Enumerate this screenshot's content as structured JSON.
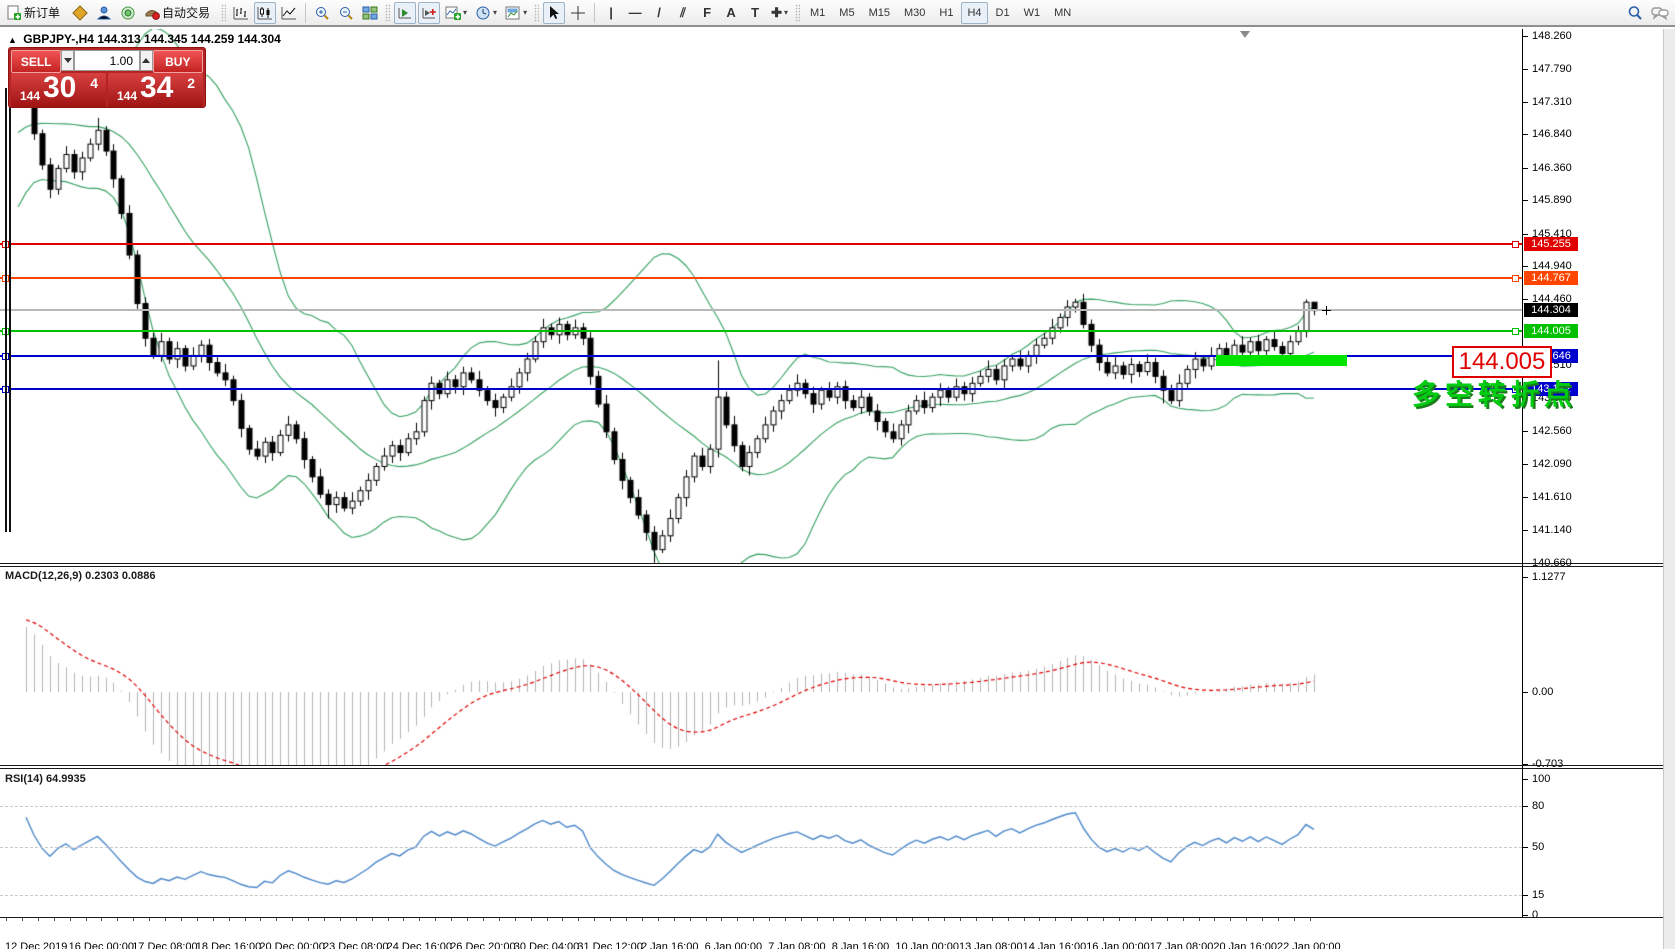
{
  "toolbar": {
    "new_order": {
      "label": "新订单"
    },
    "autotrading": {
      "label": "自动交易"
    },
    "tools": {
      "vline": "|",
      "hline": "—",
      "trend": "/",
      "channel": "⫽",
      "fibo": "F",
      "text": "A",
      "label": "T",
      "arrows": "✚"
    },
    "timeframes": [
      {
        "label": "M1"
      },
      {
        "label": "M5"
      },
      {
        "label": "M15"
      },
      {
        "label": "M30"
      },
      {
        "label": "H1"
      },
      {
        "label": "H4",
        "active": true
      },
      {
        "label": "D1"
      },
      {
        "label": "W1"
      },
      {
        "label": "MN"
      }
    ]
  },
  "quote_header": {
    "symbol": "GBPJPY-,H4",
    "ohlc": "144.313 144.345 144.259 144.304"
  },
  "trade_panel": {
    "sell_label": "SELL",
    "buy_label": "BUY",
    "volume": "1.00",
    "sell_price": {
      "prefix": "144",
      "big": "30",
      "sup": "4"
    },
    "buy_price": {
      "prefix": "144",
      "big": "34",
      "sup": "2"
    }
  },
  "annotations": {
    "level_label": "144.005",
    "note": "多空转折点"
  },
  "indicators": {
    "macd": {
      "label": "MACD(12,26,9)",
      "value_main": "0.2303",
      "value_signal": "0.0886",
      "axis": [
        "1.1277",
        "0.00",
        "-0.703"
      ],
      "fast": 12,
      "slow": 26,
      "signal": 9
    },
    "rsi": {
      "label": "RSI(14)",
      "value": "64.9935",
      "axis": [
        "100",
        "80",
        "50",
        "15",
        "0"
      ],
      "levels": [
        80,
        50,
        15
      ],
      "period": 14
    }
  },
  "price_axis": {
    "ticks": [
      "148.260",
      "147.790",
      "147.310",
      "146.840",
      "146.360",
      "145.890",
      "145.410",
      "144.940",
      "144.460",
      "143.510",
      "143.040",
      "142.560",
      "142.090",
      "141.610",
      "141.140",
      "140.660"
    ]
  },
  "chart_data": {
    "type": "candlestick",
    "symbol": "GBPJPY",
    "timeframe": "H4",
    "ylim": [
      140.55,
      148.36
    ],
    "current_price": {
      "value": 144.304,
      "color": "#b8b8b8",
      "badge": "#000000"
    },
    "levels": [
      {
        "price": 145.255,
        "label": "145.255",
        "color": "#e00000"
      },
      {
        "price": 144.767,
        "label": "144.767",
        "color": "#ff4500"
      },
      {
        "price": 144.005,
        "label": "144.005",
        "color": "#00c000"
      },
      {
        "price": 143.646,
        "label": "143.646",
        "color": "#0000cc"
      },
      {
        "price": 143.172,
        "label": "143.172",
        "color": "#0000cc"
      }
    ],
    "bollinger": {
      "period": 20,
      "deviation": 2,
      "color": "#35a060"
    },
    "time_labels": [
      "12 Dec 2019",
      "16 Dec 00:00",
      "17 Dec 08:00",
      "18 Dec 16:00",
      "20 Dec 00:00",
      "23 Dec 08:00",
      "24 Dec 16:00",
      "26 Dec 20:00",
      "30 Dec 04:00",
      "31 Dec 12:00",
      "2 Jan 16:00",
      "6 Jan 00:00",
      "7 Jan 08:00",
      "8 Jan 16:00",
      "10 Jan 00:00",
      "13 Jan 08:00",
      "14 Jan 16:00",
      "16 Jan 00:00",
      "17 Jan 08:00",
      "20 Jan 16:00",
      "22 Jan 00:00"
    ],
    "history_closes": [
      143.05,
      143.25,
      143.1,
      143.4,
      143.6,
      143.5,
      143.8,
      144.0,
      144.2,
      144.1,
      144.4,
      144.6,
      144.8,
      144.7,
      145.0,
      145.2,
      145.1,
      145.4,
      145.6,
      145.8,
      145.7,
      146.0,
      146.2,
      146.1,
      146.4,
      146.6,
      146.5,
      146.8,
      147.0,
      146.9,
      147.1,
      147.2,
      147.1,
      147.3,
      147.4,
      147.3,
      147.45,
      147.35,
      147.5,
      147.45
    ],
    "closes": [
      147.3,
      146.85,
      146.4,
      146.05,
      146.35,
      146.55,
      146.3,
      146.5,
      146.7,
      146.9,
      146.6,
      146.2,
      145.7,
      145.1,
      144.4,
      143.9,
      143.65,
      143.85,
      143.6,
      143.75,
      143.5,
      143.65,
      143.8,
      143.55,
      143.4,
      143.3,
      143.0,
      142.6,
      142.3,
      142.2,
      142.4,
      142.25,
      142.5,
      142.65,
      142.45,
      142.15,
      141.9,
      141.65,
      141.5,
      141.6,
      141.45,
      141.55,
      141.7,
      141.85,
      142.05,
      142.2,
      142.35,
      142.25,
      142.45,
      142.55,
      143.0,
      143.25,
      143.1,
      143.3,
      143.2,
      143.4,
      143.3,
      143.15,
      143.0,
      142.9,
      143.05,
      143.2,
      143.4,
      143.6,
      143.85,
      144.05,
      143.95,
      144.1,
      143.95,
      144.05,
      143.9,
      143.35,
      142.95,
      142.55,
      142.15,
      141.85,
      141.6,
      141.35,
      141.1,
      140.85,
      141.05,
      141.3,
      141.6,
      141.9,
      142.2,
      142.05,
      142.3,
      143.05,
      142.65,
      142.35,
      142.05,
      142.25,
      142.45,
      142.65,
      142.85,
      143.0,
      143.15,
      143.25,
      143.1,
      142.95,
      143.15,
      143.05,
      143.2,
      143.0,
      142.9,
      143.05,
      142.85,
      142.7,
      142.55,
      142.45,
      142.65,
      142.85,
      143.0,
      142.9,
      143.05,
      143.15,
      143.05,
      143.2,
      143.1,
      143.25,
      143.35,
      143.45,
      143.3,
      143.5,
      143.6,
      143.5,
      143.65,
      143.8,
      143.9,
      144.05,
      144.2,
      144.35,
      144.42,
      144.1,
      143.8,
      143.55,
      143.4,
      143.5,
      143.38,
      143.52,
      143.42,
      143.55,
      143.35,
      143.15,
      143.0,
      143.25,
      143.45,
      143.6,
      143.5,
      143.65,
      143.75,
      143.62,
      143.8,
      143.7,
      143.85,
      143.72,
      143.88,
      143.78,
      143.68,
      143.85,
      144.0,
      144.42,
      144.3
    ],
    "wick_high_pads": [
      0.08,
      0.13,
      0.06,
      0.1,
      0.05,
      0.12,
      0.07,
      0.09
    ],
    "wick_low_pads": [
      0.06,
      0.1,
      0.12,
      0.05,
      0.09,
      0.07,
      0.13,
      0.08
    ],
    "high_overrides": {
      "9": 147.08,
      "87": 143.58,
      "131": 144.45,
      "132": 144.47,
      "161": 144.46,
      "162": 144.38
    },
    "low_overrides": {
      "14": 144.32,
      "38": 141.3,
      "78": 140.98,
      "79": 140.66,
      "143": 142.96
    }
  }
}
